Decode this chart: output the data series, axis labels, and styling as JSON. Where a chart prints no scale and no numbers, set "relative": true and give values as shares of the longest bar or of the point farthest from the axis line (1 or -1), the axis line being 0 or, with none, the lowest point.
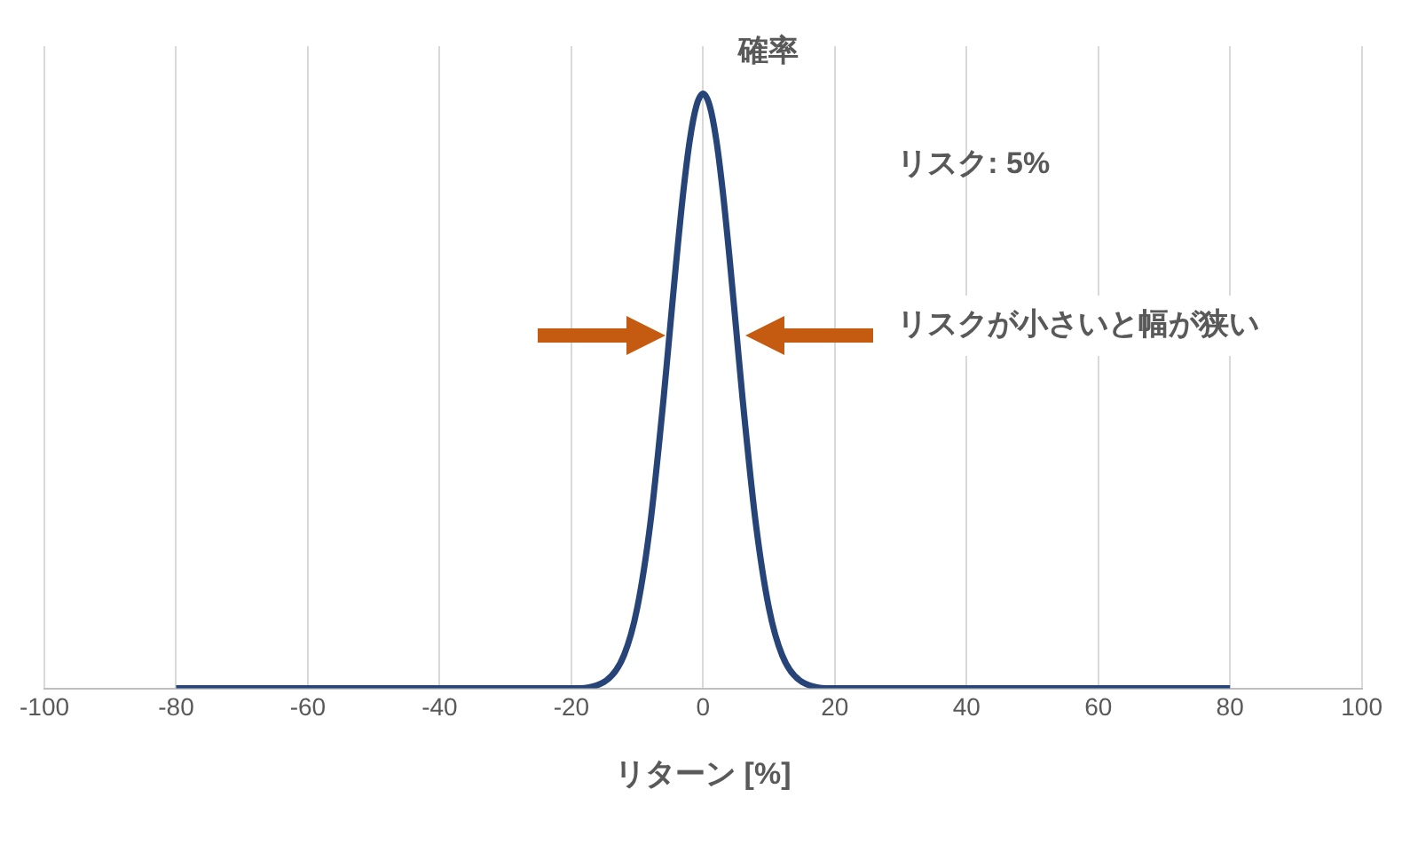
{
  "chart_data": {
    "type": "line",
    "relative": true,
    "xlabel": "リターン [%]",
    "annotations": [
      "確率",
      "リスク: 5%",
      "リスクが小さいと幅が狭い"
    ],
    "x": [
      -80,
      -40,
      -20,
      -15,
      -12,
      -10,
      -8,
      -6,
      -5,
      -4,
      -3,
      -2,
      -1,
      0,
      1,
      2,
      3,
      4,
      5,
      6,
      8,
      10,
      12,
      15,
      20,
      40,
      80
    ],
    "series": [
      {
        "color": "#264478",
        "values": [
          0,
          0,
          0,
          0.011,
          0.056,
          0.135,
          0.278,
          0.487,
          0.607,
          0.726,
          0.835,
          0.923,
          0.98,
          1,
          0.98,
          0.923,
          0.835,
          0.726,
          0.607,
          0.487,
          0.278,
          0.135,
          0.056,
          0.011,
          0,
          0,
          0
        ]
      }
    ],
    "xlim": [
      -100,
      100
    ],
    "xticks": [
      -100,
      -80,
      -60,
      -40,
      -20,
      0,
      20,
      40,
      60,
      80,
      100
    ],
    "grid": "x",
    "legend": false,
    "marker": "none",
    "line_style": "solid"
  }
}
